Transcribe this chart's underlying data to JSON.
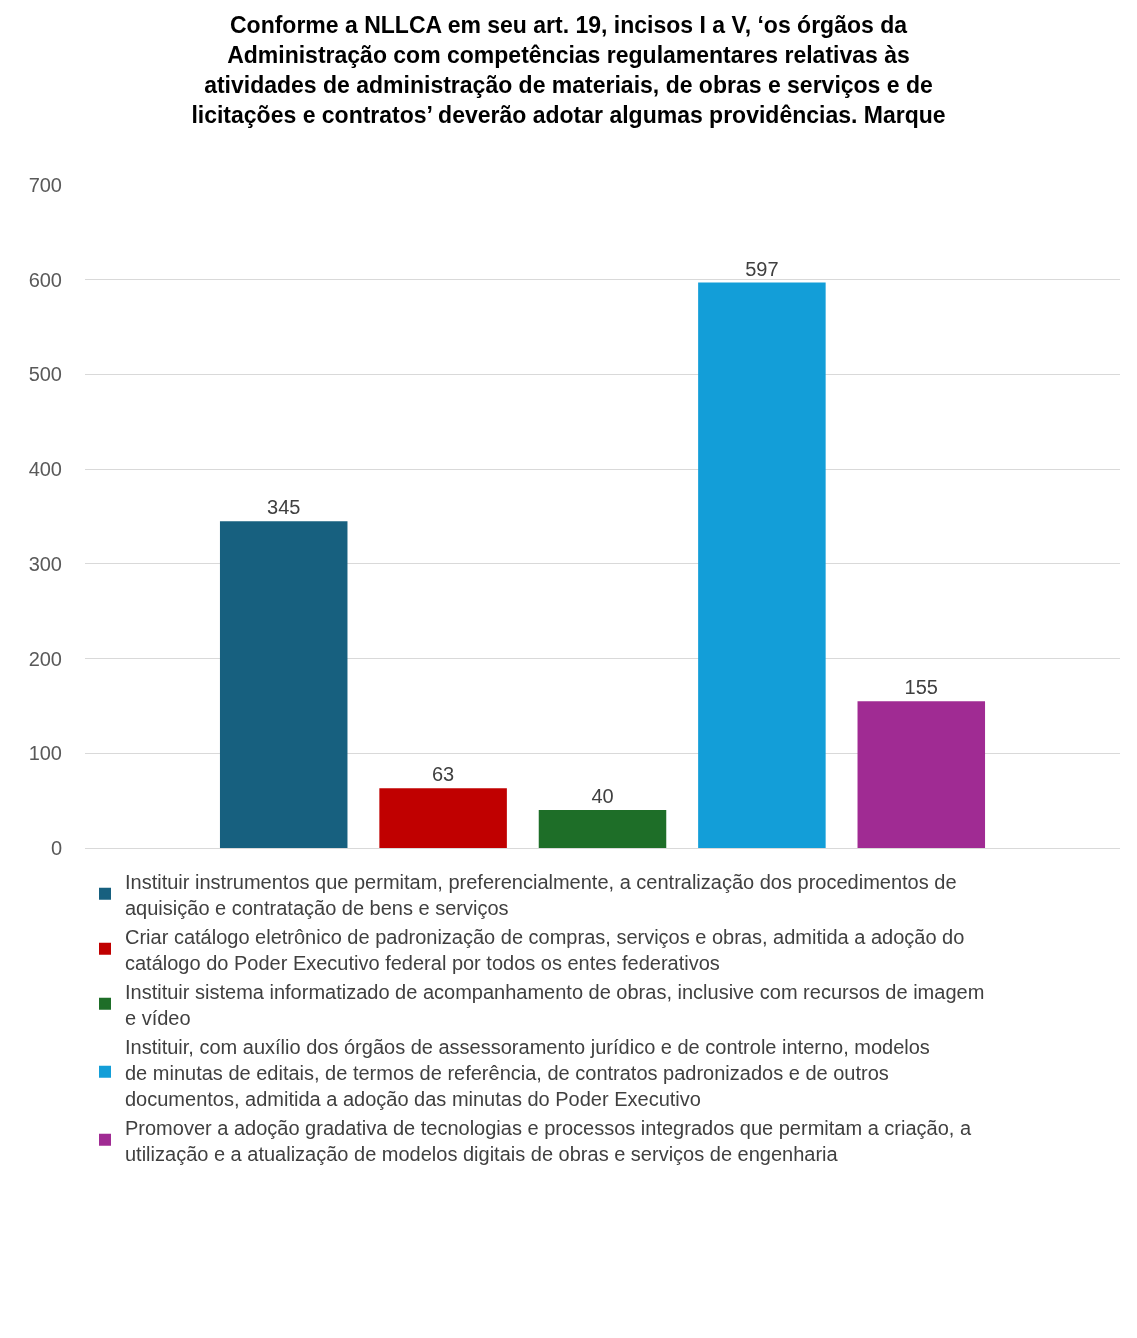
{
  "chart_data": {
    "type": "bar",
    "title": "Conforme a NLLCA em seu art. 19, incisos I a V, ‘os órgãos da Administração com competências regulamentares relativas às atividades de administração de materiais, de obras e serviços e de licitações e contratos’ deverão adotar algumas providências. Marque",
    "categories": [
      null
    ],
    "series": [
      {
        "name": "Instituir instrumentos que permitam, preferencialmente, a centralização dos procedimentos de aquisição e contratação de bens e serviços",
        "color": "#17607f",
        "values": [
          345
        ]
      },
      {
        "name": "Criar catálogo eletrônico de padronização de compras, serviços e obras, admitida a adoção do catálogo do Poder Executivo federal por todos os entes federativos",
        "color": "#c00000",
        "values": [
          63
        ]
      },
      {
        "name": "Instituir sistema informatizado de acompanhamento de obras, inclusive com recursos de imagem e vídeo",
        "color": "#1e6e28",
        "values": [
          40
        ]
      },
      {
        "name": "Instituir, com auxílio dos órgãos de assessoramento jurídico e de controle interno, modelos de minutas de editais, de termos de referência, de contratos padronizados e de outros documentos, admitida a adoção das minutas do Poder Executivo",
        "color": "#139ed8",
        "values": [
          597
        ]
      },
      {
        "name": "Promover a adoção gradativa de tecnologias e processos integrados que permitam a criação, a utilização e a atualização de modelos digitais de obras e serviços de engenharia",
        "color": "#a02b93",
        "values": [
          155
        ]
      }
    ],
    "ylim": [
      0,
      700
    ],
    "yticks": [
      0,
      100,
      200,
      300,
      400,
      500,
      600,
      700
    ],
    "grid": "y",
    "legend": "bottom",
    "data_labels": true
  }
}
